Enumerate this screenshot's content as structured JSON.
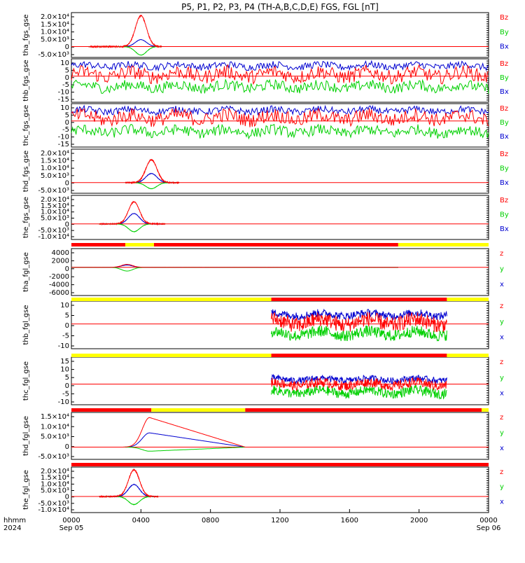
{
  "title": "P5, P1, P2, P3, P4 (TH-A,B,C,D,E) FGS, FGL [nT]",
  "colors": {
    "z": "#ff0000",
    "y": "#00d000",
    "x": "#0000d0",
    "flag_red": "#ff0000",
    "flag_yellow": "#ffff00"
  },
  "x_axis": {
    "row1_label": "hhmm",
    "row2_label": "2024",
    "ticks": [
      "0000",
      "0400",
      "0800",
      "1200",
      "1600",
      "2000",
      "0000"
    ],
    "dates": [
      "Sep 05",
      "Sep 06"
    ]
  },
  "chart_data": [
    {
      "type": "line",
      "ylabel": "tha_fgs_gse",
      "yticks": [
        "2.0×10⁴",
        "1.5×10⁴",
        "1.0×10⁴",
        "5.0×10³",
        "0",
        "-5.0×10³"
      ],
      "ylim": [
        -7000,
        22000
      ],
      "legend": [
        "Bz",
        "By",
        "Bx"
      ],
      "coverage_hours": [
        1,
        5.2
      ],
      "series": [
        {
          "name": "Bz",
          "profile": "spike",
          "peak_hour": 4.0,
          "peak": 20000
        },
        {
          "name": "By",
          "profile": "spike",
          "peak_hour": 4.0,
          "peak": -5500
        },
        {
          "name": "Bx",
          "profile": "spike",
          "peak_hour": 4.0,
          "peak": 4500
        }
      ]
    },
    {
      "type": "line",
      "ylabel": "thb_fgs_gse",
      "yticks": [
        "10",
        "5",
        "0",
        "-5",
        "-10",
        "-15"
      ],
      "ylim": [
        -15,
        10
      ],
      "legend": [
        "Bz",
        "By",
        "Bx"
      ],
      "coverage_hours": [
        0,
        24
      ],
      "series": [
        {
          "name": "Bz",
          "profile": "noise",
          "level": 1,
          "amp": 4
        },
        {
          "name": "By",
          "profile": "noise",
          "level": -6,
          "amp": 3
        },
        {
          "name": "Bx",
          "profile": "noise",
          "level": 6,
          "amp": 2
        }
      ]
    },
    {
      "type": "line",
      "ylabel": "thc_fgs_gse",
      "yticks": [
        "10",
        "5",
        "0",
        "-5",
        "-10",
        "-15"
      ],
      "ylim": [
        -15,
        10
      ],
      "legend": [
        "Bz",
        "By",
        "Bx"
      ],
      "coverage_hours": [
        0,
        24
      ],
      "series": [
        {
          "name": "Bz",
          "profile": "noise",
          "level": 2,
          "amp": 4
        },
        {
          "name": "By",
          "profile": "noise",
          "level": -6,
          "amp": 3
        },
        {
          "name": "Bx",
          "profile": "noise",
          "level": 6,
          "amp": 2
        }
      ]
    },
    {
      "type": "line",
      "ylabel": "thd_fgs_gse",
      "yticks": [
        "2.0×10⁴",
        "1.5×10⁴",
        "1.0×10⁴",
        "5.0×10³",
        "0",
        "-5.0×10³"
      ],
      "ylim": [
        -7000,
        22000
      ],
      "legend": [
        "Bz",
        "By",
        "Bx"
      ],
      "coverage_hours": [
        3.1,
        6.2
      ],
      "series": [
        {
          "name": "Bz",
          "profile": "spike",
          "peak_hour": 4.6,
          "peak": 15000
        },
        {
          "name": "By",
          "profile": "spike",
          "peak_hour": 4.6,
          "peak": -4000
        },
        {
          "name": "Bx",
          "profile": "spike",
          "peak_hour": 4.6,
          "peak": 6000
        }
      ]
    },
    {
      "type": "line",
      "ylabel": "the_fgs_gse",
      "yticks": [
        "2.0×10⁴",
        "1.5×10⁴",
        "1.0×10⁴",
        "5.0×10³",
        "0",
        "-5.0×10³",
        "-1.0×10⁴"
      ],
      "ylim": [
        -12000,
        22000
      ],
      "legend": [
        "Bz",
        "By",
        "Bx"
      ],
      "coverage_hours": [
        1.6,
        5.4
      ],
      "series": [
        {
          "name": "Bz",
          "profile": "spike",
          "peak_hour": 3.6,
          "peak": 17000
        },
        {
          "name": "By",
          "profile": "spike",
          "peak_hour": 3.6,
          "peak": -6000
        },
        {
          "name": "Bx",
          "profile": "spike",
          "peak_hour": 3.6,
          "peak": 8000
        }
      ]
    },
    {
      "type": "line",
      "ylabel": "tha_fgl_gse",
      "yticks": [
        "4000",
        "2000",
        "0",
        "-2000",
        "-4000",
        "-6000"
      ],
      "ylim": [
        -7500,
        5000
      ],
      "legend": [
        "z",
        "y",
        "x"
      ],
      "coverage_hours": [
        0,
        18.8
      ],
      "series": [
        {
          "name": "z",
          "profile": "spike",
          "peak_hour": 3.2,
          "peak": 800
        },
        {
          "name": "y",
          "profile": "spike",
          "peak_hour": 3.2,
          "peak": -1000
        },
        {
          "name": "x",
          "profile": "spike",
          "peak_hour": 3.2,
          "peak": 600
        }
      ]
    },
    {
      "type": "line",
      "ylabel": "thb_fgl_gse",
      "yticks": [
        "10",
        "5",
        "0",
        "-5",
        "-10"
      ],
      "ylim": [
        -13,
        12
      ],
      "legend": [
        "z",
        "y",
        "x"
      ],
      "coverage_hours": [
        11.5,
        21.6
      ],
      "series": [
        {
          "name": "z",
          "profile": "noise",
          "level": 1,
          "amp": 4
        },
        {
          "name": "y",
          "profile": "noise",
          "level": -5,
          "amp": 3
        },
        {
          "name": "x",
          "profile": "noise",
          "level": 5,
          "amp": 2
        }
      ]
    },
    {
      "type": "line",
      "ylabel": "thc_fgl_gse",
      "yticks": [
        "15",
        "10",
        "5",
        "0",
        "-5",
        "-10"
      ],
      "ylim": [
        -13,
        17
      ],
      "legend": [
        "z",
        "y",
        "x"
      ],
      "coverage_hours": [
        11.5,
        21.6
      ],
      "series": [
        {
          "name": "z",
          "profile": "noise",
          "level": 0,
          "amp": 3
        },
        {
          "name": "y",
          "profile": "noise",
          "level": -5,
          "amp": 3
        },
        {
          "name": "x",
          "profile": "noise",
          "level": 3,
          "amp": 2
        }
      ]
    },
    {
      "type": "line",
      "ylabel": "thd_fgl_gse",
      "yticks": [
        "1.5×10⁴",
        "1.0×10⁴",
        "5.0×10³",
        "0",
        "-5.0×10³"
      ],
      "ylim": [
        -6000,
        17000
      ],
      "legend": [
        "z",
        "y",
        "x"
      ],
      "coverage_hours": [
        1.6,
        10
      ],
      "series": [
        {
          "name": "z",
          "profile": "ramp",
          "peak_hour": 4.5,
          "peak": 14500
        },
        {
          "name": "y",
          "profile": "ramp",
          "peak_hour": 4.5,
          "peak": -2000
        },
        {
          "name": "x",
          "profile": "ramp",
          "peak_hour": 4.5,
          "peak": 7000
        }
      ]
    },
    {
      "type": "line",
      "ylabel": "the_fgl_gse",
      "yticks": [
        "2.0×10⁴",
        "1.5×10⁴",
        "1.0×10⁴",
        "5.0×10³",
        "0",
        "-5.0×10³",
        "-1.0×10⁴"
      ],
      "ylim": [
        -12000,
        22000
      ],
      "legend": [
        "z",
        "y",
        "x"
      ],
      "coverage_hours": [
        1.6,
        5.0
      ],
      "series": [
        {
          "name": "z",
          "profile": "spike",
          "peak_hour": 3.6,
          "peak": 20000
        },
        {
          "name": "y",
          "profile": "spike",
          "peak_hour": 3.6,
          "peak": -6000
        },
        {
          "name": "x",
          "profile": "spike",
          "peak_hour": 3.6,
          "peak": 9000
        }
      ]
    }
  ],
  "mode_bars": [
    {
      "segments": [
        [
          "red",
          0,
          3.1
        ],
        [
          "yellow",
          3.1,
          4.75
        ],
        [
          "red",
          4.75,
          18.8
        ],
        [
          "yellow",
          18.8,
          24
        ]
      ]
    },
    {
      "segments": [
        [
          "yellow",
          0,
          11.5
        ],
        [
          "red",
          11.5,
          21.6
        ],
        [
          "yellow",
          21.6,
          24
        ]
      ]
    },
    {
      "segments": [
        [
          "yellow",
          0,
          11.5
        ],
        [
          "red",
          11.5,
          21.6
        ],
        [
          "yellow",
          21.6,
          24
        ]
      ]
    },
    {
      "segments": [
        [
          "red",
          0,
          4.6
        ],
        [
          "yellow",
          4.6,
          10
        ],
        [
          "red",
          10,
          23.6
        ],
        [
          "yellow",
          23.6,
          24
        ]
      ]
    },
    {
      "segments": [
        [
          "red",
          0,
          24
        ]
      ]
    }
  ]
}
